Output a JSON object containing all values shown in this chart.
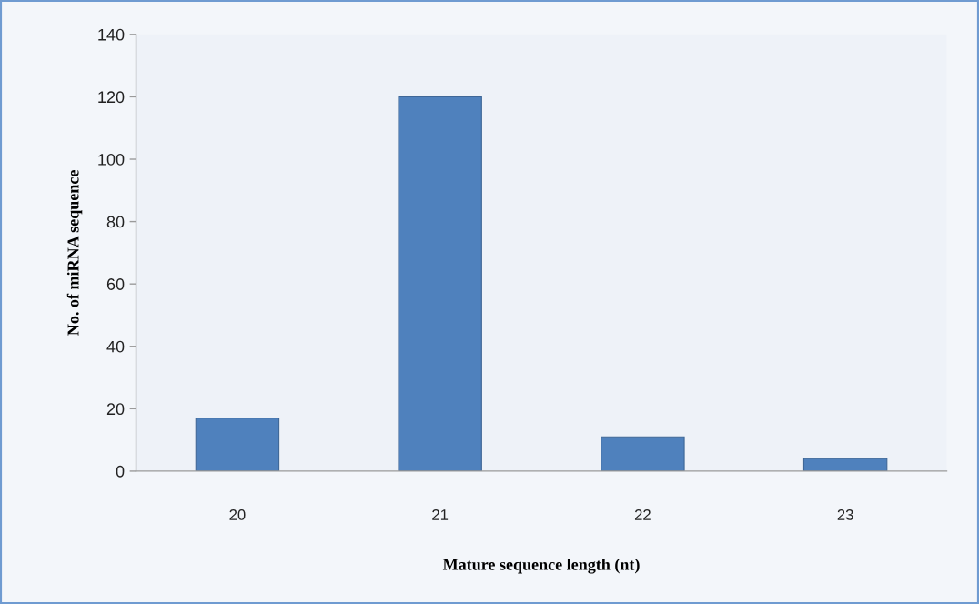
{
  "chart_data": {
    "type": "bar",
    "xlabel": "Mature sequence length (nt)",
    "ylabel": "No. of miRNA sequence",
    "categories": [
      "20",
      "21",
      "22",
      "23"
    ],
    "values": [
      17,
      120,
      11,
      4
    ],
    "color": "#4f81bd",
    "ylim": [
      0,
      140
    ],
    "yticks": [
      0,
      20,
      40,
      60,
      80,
      100,
      120,
      140
    ]
  }
}
